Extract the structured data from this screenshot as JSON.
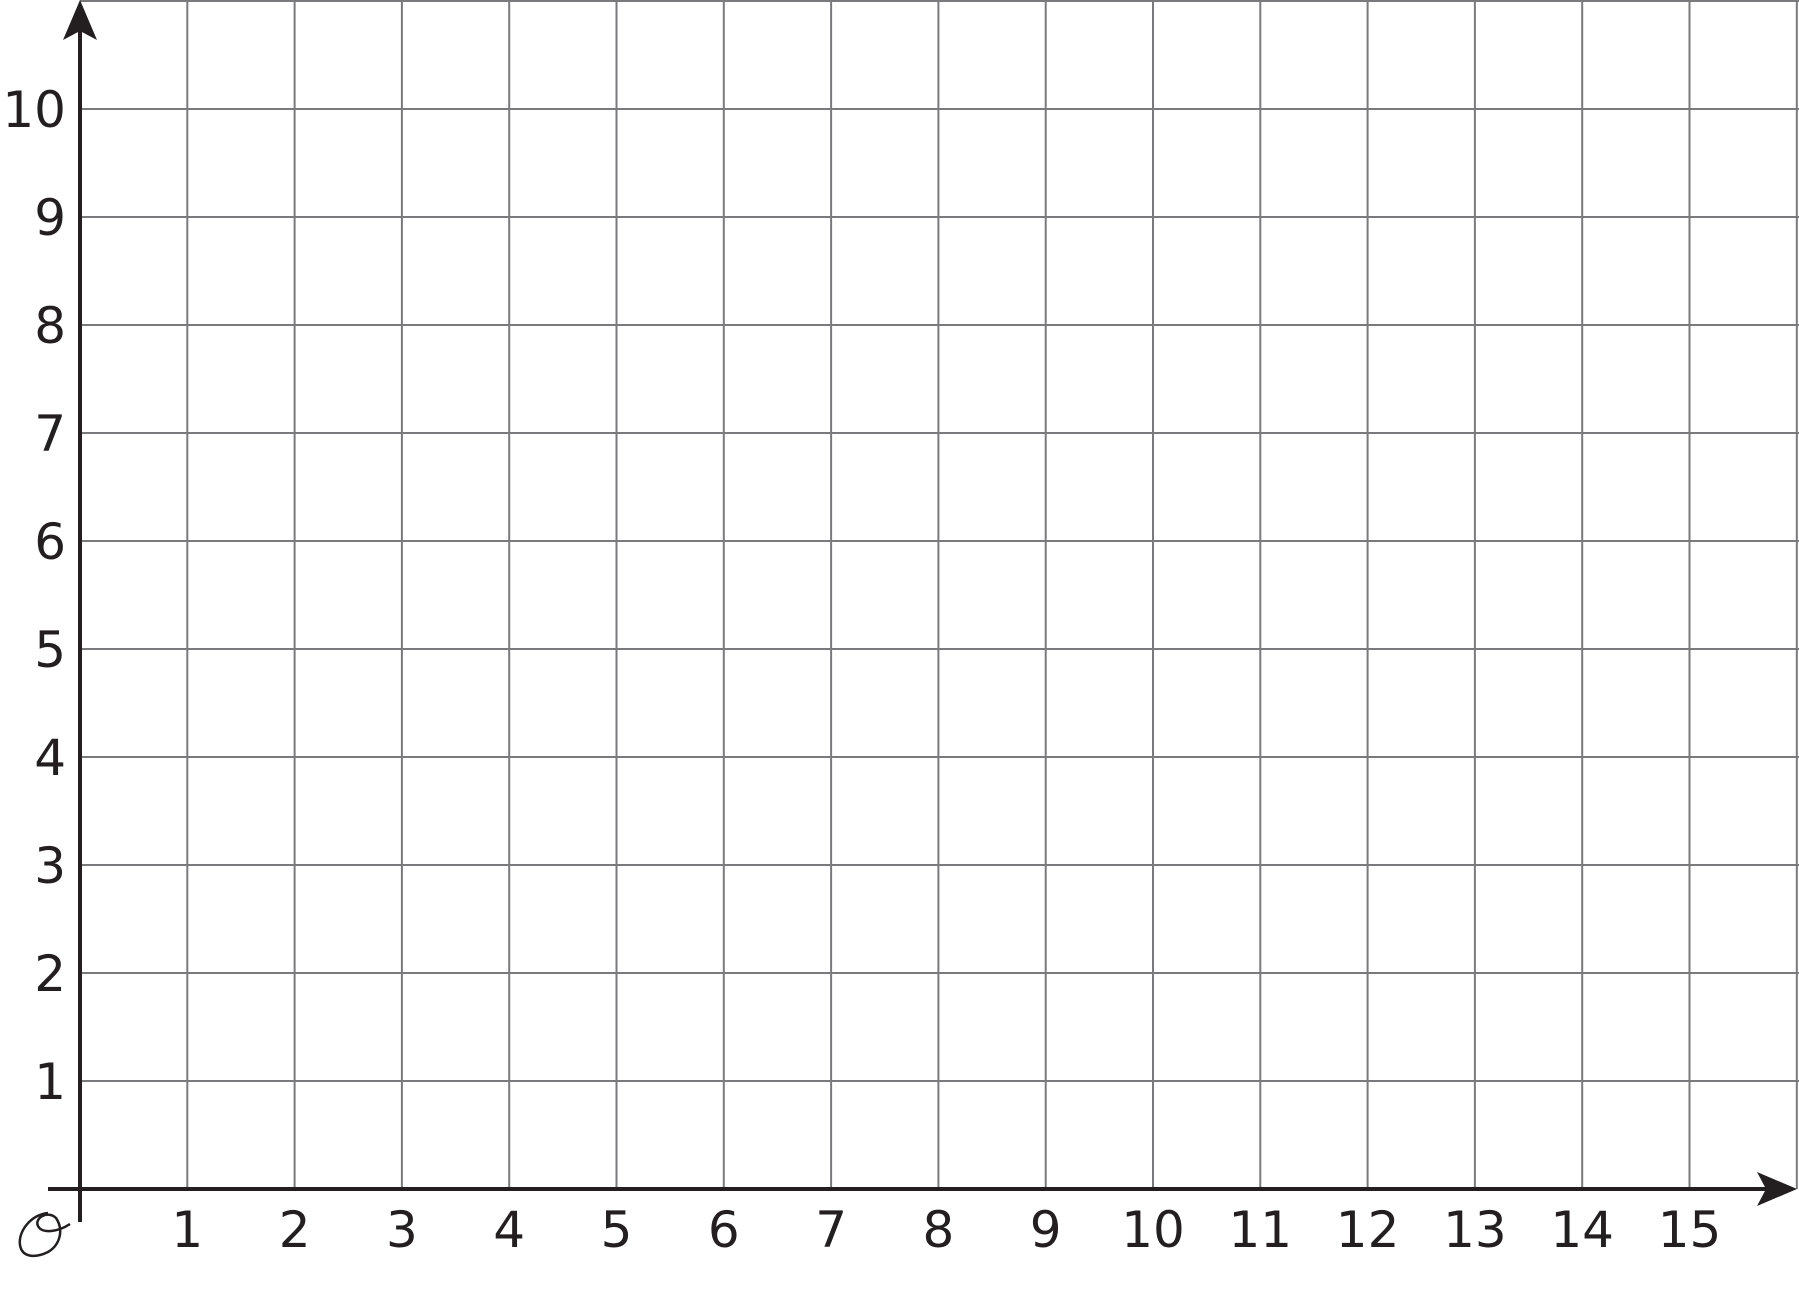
{
  "chart_data": {
    "type": "scatter",
    "title": "",
    "xlabel": "",
    "ylabel": "",
    "xlim": [
      0,
      16
    ],
    "ylim": [
      0,
      11
    ],
    "grid": true,
    "x_ticks": [
      "1",
      "2",
      "3",
      "4",
      "5",
      "6",
      "7",
      "8",
      "9",
      "10",
      "11",
      "12",
      "13",
      "14",
      "15"
    ],
    "y_ticks": [
      "1",
      "2",
      "3",
      "4",
      "5",
      "6",
      "7",
      "8",
      "9",
      "10"
    ],
    "series": [],
    "colors": {
      "grid": "#7a7a7c",
      "axis": "#231f20",
      "text": "#231f20"
    }
  }
}
